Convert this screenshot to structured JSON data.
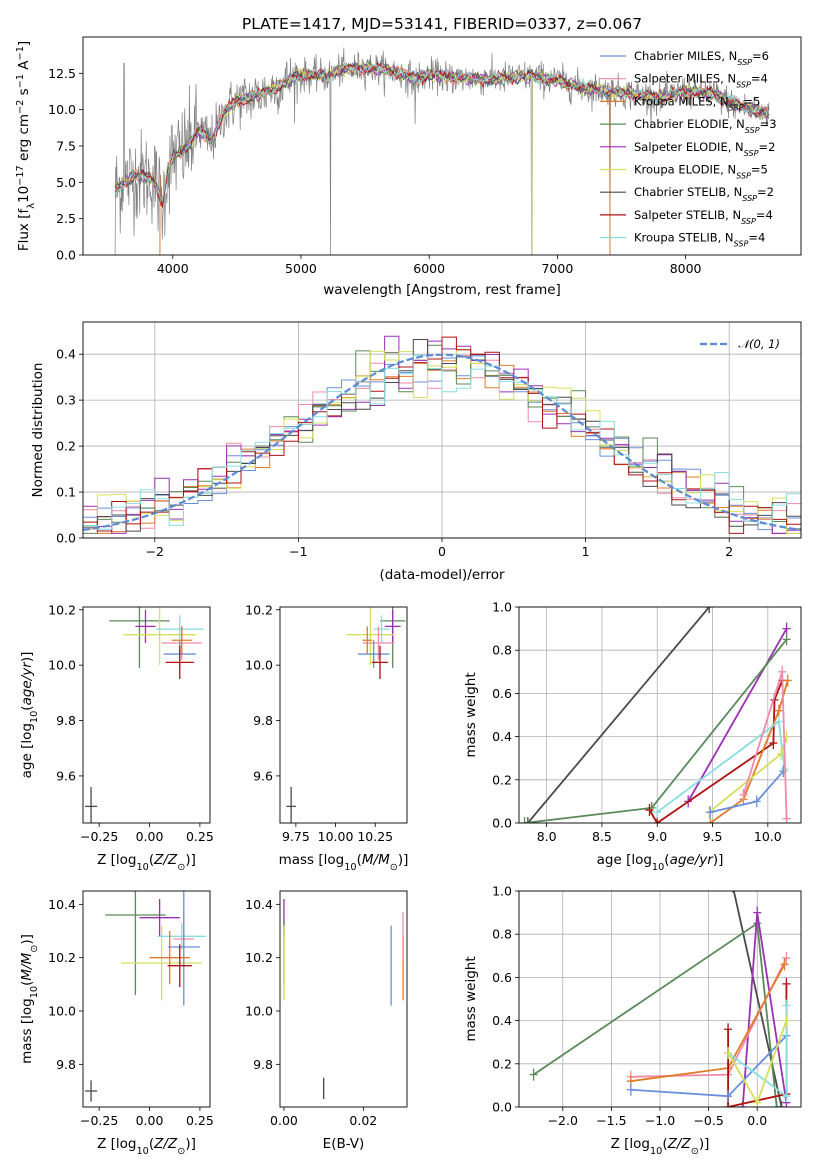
{
  "figure": {
    "title": "PLATE=1417, MJD=53141, FIBERID=0337, z=0.067"
  },
  "colors": {
    "Chabrier MILES": "#6a8fdc",
    "Salpeter MILES": "#f08aa8",
    "Kroupa MILES": "#e07b2a",
    "Chabrier ELODIE": "#5a8a5a",
    "Salpeter ELODIE": "#9b30b5",
    "Kroupa ELODIE": "#d4e05a",
    "Chabrier STELIB": "#4a4a4a",
    "Salpeter STELIB": "#b01010",
    "Kroupa STELIB": "#88dde0",
    "data": "#808080",
    "normal": "#5b8ad6"
  },
  "chart_data": [
    {
      "id": "spectrum",
      "type": "line",
      "xlabel": "wavelength [Angstrom, rest frame]",
      "ylabel": "Flux [fλ10⁻¹⁷ erg cm⁻² s⁻¹ A⁻¹]",
      "xlim": [
        3300,
        8900
      ],
      "ylim": [
        0,
        15.0
      ],
      "xticks": [
        "4000",
        "5000",
        "6000",
        "7000",
        "8000"
      ],
      "yticks": [
        "0.0",
        "2.5",
        "5.0",
        "7.5",
        "10.0",
        "12.5"
      ],
      "legend_position": "upper right",
      "legend": [
        {
          "model": "Chabrier MILES",
          "label": "Chabrier MILES, N",
          "sub": "SSP",
          "tail": "=6"
        },
        {
          "model": "Salpeter MILES",
          "label": "Salpeter MILES, N",
          "sub": "SSP",
          "tail": "=4"
        },
        {
          "model": "Kroupa MILES",
          "label": "Kroupa MILES, N",
          "sub": "SSP",
          "tail": "=5"
        },
        {
          "model": "Chabrier ELODIE",
          "label": "Chabrier ELODIE, N",
          "sub": "SSP",
          "tail": "=3"
        },
        {
          "model": "Salpeter ELODIE",
          "label": "Salpeter ELODIE, N",
          "sub": "SSP",
          "tail": "=2"
        },
        {
          "model": "Kroupa ELODIE",
          "label": "Kroupa ELODIE, N",
          "sub": "SSP",
          "tail": "=5"
        },
        {
          "model": "Chabrier STELIB",
          "label": "Chabrier STELIB, N",
          "sub": "SSP",
          "tail": "=2"
        },
        {
          "model": "Salpeter STELIB",
          "label": "Salpeter STELIB, N",
          "sub": "SSP",
          "tail": "=4"
        },
        {
          "model": "Kroupa STELIB",
          "label": "Kroupa STELIB, N",
          "sub": "SSP",
          "tail": "=4"
        }
      ],
      "continuum_knots": [
        [
          3550,
          4.5
        ],
        [
          3700,
          5.5
        ],
        [
          3850,
          5.3
        ],
        [
          3920,
          3.5
        ],
        [
          3960,
          5.8
        ],
        [
          4000,
          6.7
        ],
        [
          4100,
          7.3
        ],
        [
          4200,
          8.6
        ],
        [
          4300,
          7.8
        ],
        [
          4400,
          9.8
        ],
        [
          4500,
          10.6
        ],
        [
          4700,
          11.1
        ],
        [
          4860,
          11.8
        ],
        [
          5000,
          12.4
        ],
        [
          5200,
          12.3
        ],
        [
          5300,
          12.7
        ],
        [
          5500,
          12.9
        ],
        [
          5700,
          12.7
        ],
        [
          5890,
          12.1
        ],
        [
          6000,
          12.4
        ],
        [
          6200,
          12.2
        ],
        [
          6500,
          12.1
        ],
        [
          6800,
          12.3
        ],
        [
          7000,
          12.0
        ],
        [
          7200,
          11.5
        ],
        [
          7500,
          11.2
        ],
        [
          7800,
          10.8
        ],
        [
          8000,
          11.3
        ],
        [
          8200,
          11.1
        ],
        [
          8400,
          10.3
        ],
        [
          8600,
          9.8
        ]
      ],
      "spikes": [
        [
          3550,
          0
        ],
        [
          3620,
          13.2
        ],
        [
          5230,
          0
        ],
        [
          5890,
          9.0
        ],
        [
          6140,
          11.3
        ],
        [
          6800,
          0
        ],
        [
          7410,
          0
        ]
      ]
    },
    {
      "id": "residuals",
      "type": "histogram",
      "xlabel": "(data-model)/error",
      "ylabel": "Normed distribution",
      "xlim": [
        -2.5,
        2.5
      ],
      "ylim": [
        0,
        0.47
      ],
      "xticks": [
        "−2",
        "−1",
        "0",
        "1",
        "2"
      ],
      "yticks": [
        "0.0",
        "0.1",
        "0.2",
        "0.3",
        "0.4"
      ],
      "grid": true,
      "bins": 50,
      "bin_range": [
        -2.5,
        2.5
      ],
      "legend": {
        "label": "𝒩(0, 1)"
      },
      "models": [
        "Chabrier MILES",
        "Salpeter MILES",
        "Kroupa MILES",
        "Chabrier ELODIE",
        "Salpeter ELODIE",
        "Kroupa ELODIE",
        "Chabrier STELIB",
        "Salpeter STELIB",
        "Kroupa STELIB"
      ]
    },
    {
      "id": "age-vs-Z",
      "type": "errorbar",
      "xlabel": "Z [log₁₀(Z/Z⊙)]",
      "ylabel": "age  [log₁₀(age/yr)]",
      "xlim": [
        -0.33,
        0.3
      ],
      "ylim": [
        9.43,
        10.21
      ],
      "xticks": [
        {
          "v": -0.25,
          "t": "−0.25"
        },
        {
          "v": 0,
          "t": "0.00"
        },
        {
          "v": 0.25,
          "t": "0.25"
        }
      ],
      "yticks": [
        {
          "v": 9.6,
          "t": "9.6"
        },
        {
          "v": 9.8,
          "t": "9.8"
        },
        {
          "v": 10.0,
          "t": "10.0"
        },
        {
          "v": 10.2,
          "t": "10.2"
        }
      ],
      "points": [
        {
          "model": "Chabrier ELODIE",
          "x": -0.05,
          "xerr": 0.15,
          "y": 10.16,
          "yerr": 0.17
        },
        {
          "model": "Salpeter ELODIE",
          "x": -0.02,
          "xerr": 0.05,
          "y": 10.14,
          "yerr": 0.06
        },
        {
          "model": "Kroupa ELODIE",
          "x": 0.05,
          "xerr": 0.18,
          "y": 10.11,
          "yerr": 0.11
        },
        {
          "model": "Kroupa STELIB",
          "x": 0.15,
          "xerr": 0.12,
          "y": 10.13,
          "yerr": 0.05
        },
        {
          "model": "Salpeter MILES",
          "x": 0.16,
          "xerr": 0.1,
          "y": 10.08,
          "yerr": 0.06
        },
        {
          "model": "Chabrier MILES",
          "x": 0.15,
          "xerr": 0.08,
          "y": 10.04,
          "yerr": 0.05
        },
        {
          "model": "Kroupa MILES",
          "x": 0.16,
          "xerr": 0.05,
          "y": 10.09,
          "yerr": 0.05
        },
        {
          "model": "Salpeter STELIB",
          "x": 0.15,
          "xerr": 0.07,
          "y": 10.01,
          "yerr": 0.06
        },
        {
          "model": "Chabrier STELIB",
          "x": -0.29,
          "xerr": 0.03,
          "y": 9.49,
          "yerr": 0.07
        }
      ]
    },
    {
      "id": "age-vs-mass",
      "type": "errorbar",
      "xlabel": "mass [log₁₀(M/M⊙)]",
      "ylabel": "",
      "xlim": [
        9.65,
        10.45
      ],
      "ylim": [
        9.43,
        10.21
      ],
      "xticks": [
        {
          "v": 9.75,
          "t": "9.75"
        },
        {
          "v": 10.0,
          "t": "10.00"
        },
        {
          "v": 10.25,
          "t": "10.25"
        }
      ],
      "yticks": [
        {
          "v": 9.6,
          "t": "9.6"
        },
        {
          "v": 9.8,
          "t": "9.8"
        },
        {
          "v": 10.0,
          "t": "10.0"
        },
        {
          "v": 10.2,
          "t": "10.2"
        }
      ],
      "points": [
        {
          "model": "Chabrier ELODIE",
          "x": 10.36,
          "xerr": 0.08,
          "y": 10.16,
          "yerr": 0.17
        },
        {
          "model": "Salpeter ELODIE",
          "x": 10.36,
          "xerr": 0.05,
          "y": 10.14,
          "yerr": 0.06
        },
        {
          "model": "Kroupa ELODIE",
          "x": 10.22,
          "xerr": 0.15,
          "y": 10.11,
          "yerr": 0.11
        },
        {
          "model": "Kroupa STELIB",
          "x": 10.29,
          "xerr": 0.05,
          "y": 10.13,
          "yerr": 0.05
        },
        {
          "model": "Salpeter MILES",
          "x": 10.27,
          "xerr": 0.1,
          "y": 10.08,
          "yerr": 0.06
        },
        {
          "model": "Chabrier MILES",
          "x": 10.24,
          "xerr": 0.1,
          "y": 10.04,
          "yerr": 0.05
        },
        {
          "model": "Kroupa MILES",
          "x": 10.2,
          "xerr": 0.03,
          "y": 10.09,
          "yerr": 0.05
        },
        {
          "model": "Salpeter STELIB",
          "x": 10.28,
          "xerr": 0.05,
          "y": 10.01,
          "yerr": 0.06
        },
        {
          "model": "Chabrier STELIB",
          "x": 9.72,
          "xerr": 0.03,
          "y": 9.49,
          "yerr": 0.07
        }
      ]
    },
    {
      "id": "massweight-vs-age",
      "type": "line",
      "xlabel": "age  [log₁₀(age/yr)]",
      "ylabel": "mass weight",
      "xlim": [
        7.75,
        10.3
      ],
      "ylim": [
        0,
        1.0
      ],
      "grid": true,
      "xticks": [
        {
          "v": 8.0,
          "t": "8.0"
        },
        {
          "v": 8.5,
          "t": "8.5"
        },
        {
          "v": 9.0,
          "t": "9.0"
        },
        {
          "v": 9.5,
          "t": "9.5"
        },
        {
          "v": 10.0,
          "t": "10.0"
        }
      ],
      "yticks": [
        {
          "v": 0,
          "t": "0.0"
        },
        {
          "v": 0.2,
          "t": "0.2"
        },
        {
          "v": 0.4,
          "t": "0.4"
        },
        {
          "v": 0.6,
          "t": "0.6"
        },
        {
          "v": 0.8,
          "t": "0.8"
        },
        {
          "v": 1.0,
          "t": "1.0"
        }
      ],
      "series": [
        {
          "model": "Chabrier STELIB",
          "x": [
            7.83,
            9.47
          ],
          "y": [
            0.0,
            1.0
          ]
        },
        {
          "model": "Salpeter ELODIE",
          "x": [
            9.28,
            10.17
          ],
          "y": [
            0.1,
            0.9
          ]
        },
        {
          "model": "Chabrier ELODIE",
          "x": [
            7.8,
            8.95,
            10.17
          ],
          "y": [
            0.0,
            0.07,
            0.85
          ]
        },
        {
          "model": "Salpeter STELIB",
          "x": [
            8.93,
            9.0,
            10.05,
            10.06,
            10.13
          ],
          "y": [
            0.06,
            0.0,
            0.37,
            0.57,
            0.66
          ]
        },
        {
          "model": "Kroupa MILES",
          "x": [
            9.48,
            9.78,
            10.1,
            10.18
          ],
          "y": [
            0.0,
            0.11,
            0.52,
            0.66
          ]
        },
        {
          "model": "Kroupa STELIB",
          "x": [
            9.0,
            10.1,
            10.15
          ],
          "y": [
            0.05,
            0.47,
            0.25
          ]
        },
        {
          "model": "Kroupa ELODIE",
          "x": [
            9.47,
            10.12,
            10.17
          ],
          "y": [
            0.05,
            0.32,
            0.4
          ]
        },
        {
          "model": "Chabrier MILES",
          "x": [
            9.48,
            9.9,
            10.14
          ],
          "y": [
            0.05,
            0.1,
            0.24
          ]
        },
        {
          "model": "Salpeter MILES",
          "x": [
            9.78,
            10.13,
            10.17
          ],
          "y": [
            0.13,
            0.7,
            0.02
          ]
        }
      ]
    },
    {
      "id": "mass-vs-Z",
      "type": "errorbar",
      "xlabel": "Z [log₁₀(Z/Z⊙)]",
      "ylabel": "mass [log₁₀(M/M⊙)]",
      "xlim": [
        -0.33,
        0.3
      ],
      "ylim": [
        9.64,
        10.45
      ],
      "xticks": [
        {
          "v": -0.25,
          "t": "−0.25"
        },
        {
          "v": 0,
          "t": "0.00"
        },
        {
          "v": 0.25,
          "t": "0.25"
        }
      ],
      "yticks": [
        {
          "v": 9.8,
          "t": "9.8"
        },
        {
          "v": 10.0,
          "t": "10.0"
        },
        {
          "v": 10.2,
          "t": "10.2"
        },
        {
          "v": 10.4,
          "t": "10.4"
        }
      ],
      "points": [
        {
          "model": "Chabrier ELODIE",
          "x": -0.07,
          "xerr": 0.15,
          "y": 10.36,
          "yerr": 0.3
        },
        {
          "model": "Salpeter ELODIE",
          "x": 0.05,
          "xerr": 0.1,
          "y": 10.35,
          "yerr": 0.07
        },
        {
          "model": "Kroupa ELODIE",
          "x": 0.06,
          "xerr": 0.2,
          "y": 10.18,
          "yerr": 0.14
        },
        {
          "model": "Kroupa STELIB",
          "x": 0.16,
          "xerr": 0.12,
          "y": 10.28,
          "yerr": 0.05
        },
        {
          "model": "Salpeter MILES",
          "x": 0.17,
          "xerr": 0.05,
          "y": 10.27,
          "yerr": 0.1
        },
        {
          "model": "Chabrier MILES",
          "x": 0.17,
          "xerr": 0.08,
          "y": 10.24,
          "yerr": 0.22
        },
        {
          "model": "Kroupa MILES",
          "x": 0.1,
          "xerr": 0.1,
          "y": 10.2,
          "yerr": 0.1
        },
        {
          "model": "Salpeter STELIB",
          "x": 0.15,
          "xerr": 0.06,
          "y": 10.17,
          "yerr": 0.08
        },
        {
          "model": "Chabrier STELIB",
          "x": -0.29,
          "xerr": 0.03,
          "y": 9.7,
          "yerr": 0.04
        }
      ]
    },
    {
      "id": "mass-vs-ebv",
      "type": "errorbar",
      "xlabel": "E(B-V)",
      "ylabel": "",
      "xlim": [
        -0.001,
        0.031
      ],
      "ylim": [
        9.64,
        10.45
      ],
      "xticks": [
        {
          "v": 0.0,
          "t": "0.00"
        },
        {
          "v": 0.02,
          "t": "0.02"
        }
      ],
      "yticks": [
        {
          "v": 9.8,
          "t": "9.8"
        },
        {
          "v": 10.0,
          "t": "10.0"
        },
        {
          "v": 10.2,
          "t": "10.2"
        },
        {
          "v": 10.4,
          "t": "10.4"
        }
      ],
      "points": [
        {
          "model": "Salpeter ELODIE",
          "x": 0.0,
          "xerr": 0,
          "y": 10.35,
          "yerr": 0.07
        },
        {
          "model": "Chabrier ELODIE",
          "x": 0.0,
          "xerr": 0,
          "y": 10.22,
          "yerr": 0.12
        },
        {
          "model": "Kroupa ELODIE",
          "x": 0.0,
          "xerr": 0,
          "y": 10.18,
          "yerr": 0.14
        },
        {
          "model": "Chabrier MILES",
          "x": 0.027,
          "xerr": 0,
          "y": 10.17,
          "yerr": 0.15
        },
        {
          "model": "Kroupa MILES",
          "x": 0.03,
          "xerr": 0,
          "y": 10.16,
          "yerr": 0.12
        },
        {
          "model": "Salpeter MILES",
          "x": 0.03,
          "xerr": 0,
          "y": 10.28,
          "yerr": 0.09
        },
        {
          "model": "Chabrier STELIB",
          "x": 0.01,
          "xerr": 0,
          "y": 9.71,
          "yerr": 0.04
        }
      ]
    },
    {
      "id": "massweight-vs-Z",
      "type": "line",
      "xlabel": "Z [log₁₀(Z/Z⊙)]",
      "ylabel": "mass weight",
      "xlim": [
        -2.45,
        0.45
      ],
      "ylim": [
        0,
        1.0
      ],
      "grid": true,
      "xticks": [
        {
          "v": -2.0,
          "t": "−2.0"
        },
        {
          "v": -1.5,
          "t": "−1.5"
        },
        {
          "v": -1.0,
          "t": "−1.0"
        },
        {
          "v": -0.5,
          "t": "−0.5"
        },
        {
          "v": 0.0,
          "t": "0.0"
        }
      ],
      "yticks": [
        {
          "v": 0,
          "t": "0.0"
        },
        {
          "v": 0.2,
          "t": "0.2"
        },
        {
          "v": 0.4,
          "t": "0.4"
        },
        {
          "v": 0.6,
          "t": "0.6"
        },
        {
          "v": 0.8,
          "t": "0.8"
        },
        {
          "v": 1.0,
          "t": "1.0"
        }
      ],
      "series": [
        {
          "model": "Chabrier STELIB",
          "x": [
            -0.25,
            0.25
          ],
          "y": [
            1.02,
            0.0
          ]
        },
        {
          "model": "Chabrier ELODIE",
          "x": [
            -2.3,
            0.0,
            0.2
          ],
          "y": [
            0.15,
            0.85,
            0.0
          ]
        },
        {
          "model": "Salpeter ELODIE",
          "x": [
            -0.15,
            0.0,
            0.3
          ],
          "y": [
            0.0,
            0.9,
            0.02
          ]
        },
        {
          "model": "Salpeter MILES",
          "x": [
            -1.3,
            -0.3,
            0.3
          ],
          "y": [
            0.14,
            0.15,
            0.69
          ]
        },
        {
          "model": "Kroupa MILES",
          "x": [
            -1.3,
            -0.3,
            0.28
          ],
          "y": [
            0.12,
            0.18,
            0.66
          ]
        },
        {
          "model": "Salpeter STELIB",
          "x": [
            -0.3,
            -0.3,
            0.3,
            0.3
          ],
          "y": [
            0.36,
            0.0,
            0.06,
            0.57
          ]
        },
        {
          "model": "Chabrier MILES",
          "x": [
            -1.3,
            -0.3,
            0.3
          ],
          "y": [
            0.08,
            0.05,
            0.33
          ]
        },
        {
          "model": "Kroupa STELIB",
          "x": [
            -0.3,
            0.3,
            0.3
          ],
          "y": [
            0.25,
            0.05,
            0.47
          ]
        },
        {
          "model": "Kroupa ELODIE",
          "x": [
            -0.3,
            0.0,
            0.3
          ],
          "y": [
            0.25,
            0.02,
            0.4
          ]
        }
      ]
    }
  ]
}
